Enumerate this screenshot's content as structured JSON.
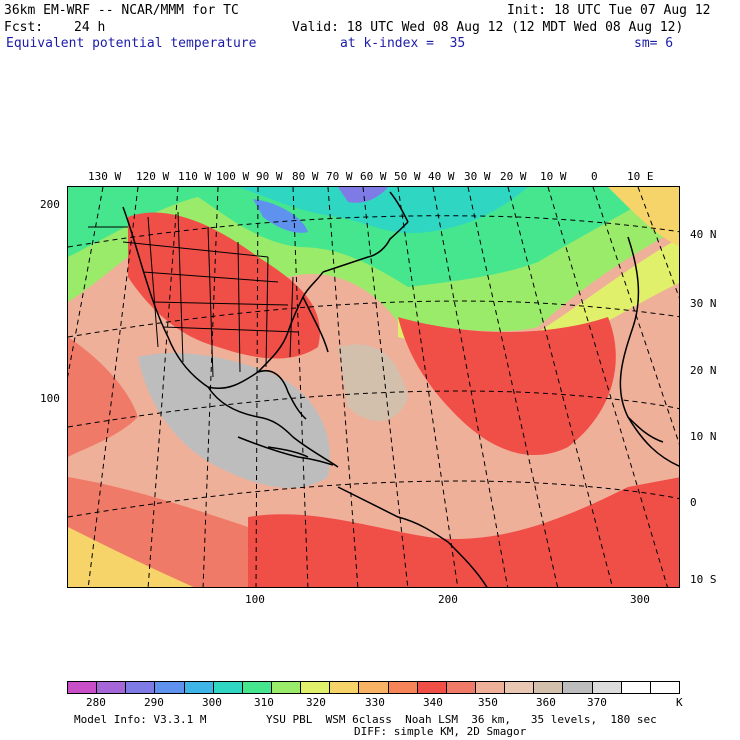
{
  "header": {
    "model_title": "36km EM-WRF -- NCAR/MMM for TC",
    "init": "Init: 18 UTC Tue 07 Aug 12",
    "fcst_label": "Fcst:",
    "fcst_value": "24 h",
    "valid": "Valid: 18 UTC Wed 08 Aug 12 (12 MDT Wed 08 Aug 12)",
    "field": "Equivalent potential temperature",
    "k_index": "at k-index =  35",
    "smoothing": "sm= 6"
  },
  "map": {
    "top_lon_labels": [
      "130 W",
      "120 W",
      "110 W",
      "100 W",
      "90 W",
      "80 W",
      "70 W",
      "60 W",
      "50 W",
      "40 W",
      "30 W",
      "20 W",
      "10 W",
      "0",
      "10 E"
    ],
    "right_lat_labels": [
      "40 N",
      "30 N",
      "20 N",
      "10 N",
      "0",
      "10 S"
    ],
    "left_grid_labels": [
      "200",
      "100"
    ],
    "bottom_grid_labels": [
      "100",
      "200",
      "300"
    ]
  },
  "colorbar": {
    "colors": [
      "#c94fc9",
      "#a566d8",
      "#7f7be6",
      "#5f92ef",
      "#3fb4e6",
      "#2fd6c2",
      "#46e68e",
      "#9beb6a",
      "#e1f06a",
      "#f6d46a",
      "#f8b264",
      "#f68458",
      "#f04f48",
      "#f07a68",
      "#efb09a",
      "#e8c7b3",
      "#d2c0ad",
      "#bdbdbd",
      "#dcdcdc",
      "#ffffff",
      "#ffffff"
    ],
    "labels": [
      "280",
      "290",
      "300",
      "310",
      "320",
      "330",
      "340",
      "350",
      "360",
      "370"
    ],
    "unit": "K"
  },
  "footer": {
    "model_info": "Model Info: V3.3.1 M",
    "physics": "YSU PBL  WSM 6class  Noah LSM  36 km,   35 levels,  180 sec",
    "diffusion": "DIFF: simple KM, 2D Smagor"
  }
}
